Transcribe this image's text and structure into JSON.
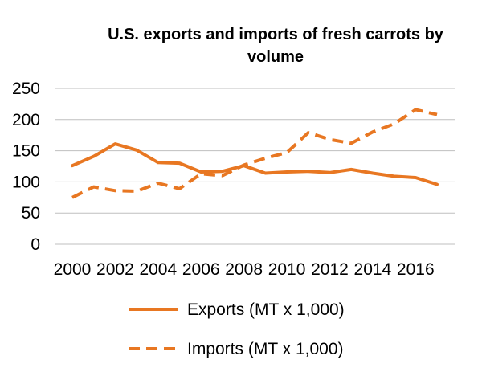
{
  "chart_data": {
    "type": "line",
    "title_lines": [
      "U.S. exports and imports of fresh carrots by",
      "volume"
    ],
    "xlabel": "",
    "ylabel": "",
    "x": [
      2000,
      2001,
      2002,
      2003,
      2004,
      2005,
      2006,
      2007,
      2008,
      2009,
      2010,
      2011,
      2012,
      2013,
      2014,
      2015,
      2016,
      2017
    ],
    "x_tick_labels": [
      "2000",
      "2002",
      "2004",
      "2006",
      "2008",
      "2010",
      "2012",
      "2014",
      "2016"
    ],
    "y_tick_labels": [
      "0",
      "50",
      "100",
      "150",
      "200",
      "250"
    ],
    "ylim": [
      0,
      250
    ],
    "grid": true,
    "legend_position": "bottom",
    "series": [
      {
        "name": "Exports (MT x 1,000)",
        "style": "solid",
        "color": "#E87722",
        "values": [
          126,
          141,
          161,
          151,
          131,
          130,
          116,
          117,
          126,
          114,
          116,
          117,
          115,
          120,
          114,
          109,
          107,
          96
        ]
      },
      {
        "name": "Imports (MT x 1,000)",
        "style": "dashed",
        "color": "#E87722",
        "values": [
          75,
          92,
          86,
          85,
          98,
          89,
          113,
          110,
          127,
          138,
          147,
          179,
          168,
          162,
          180,
          193,
          216,
          208
        ]
      }
    ]
  }
}
